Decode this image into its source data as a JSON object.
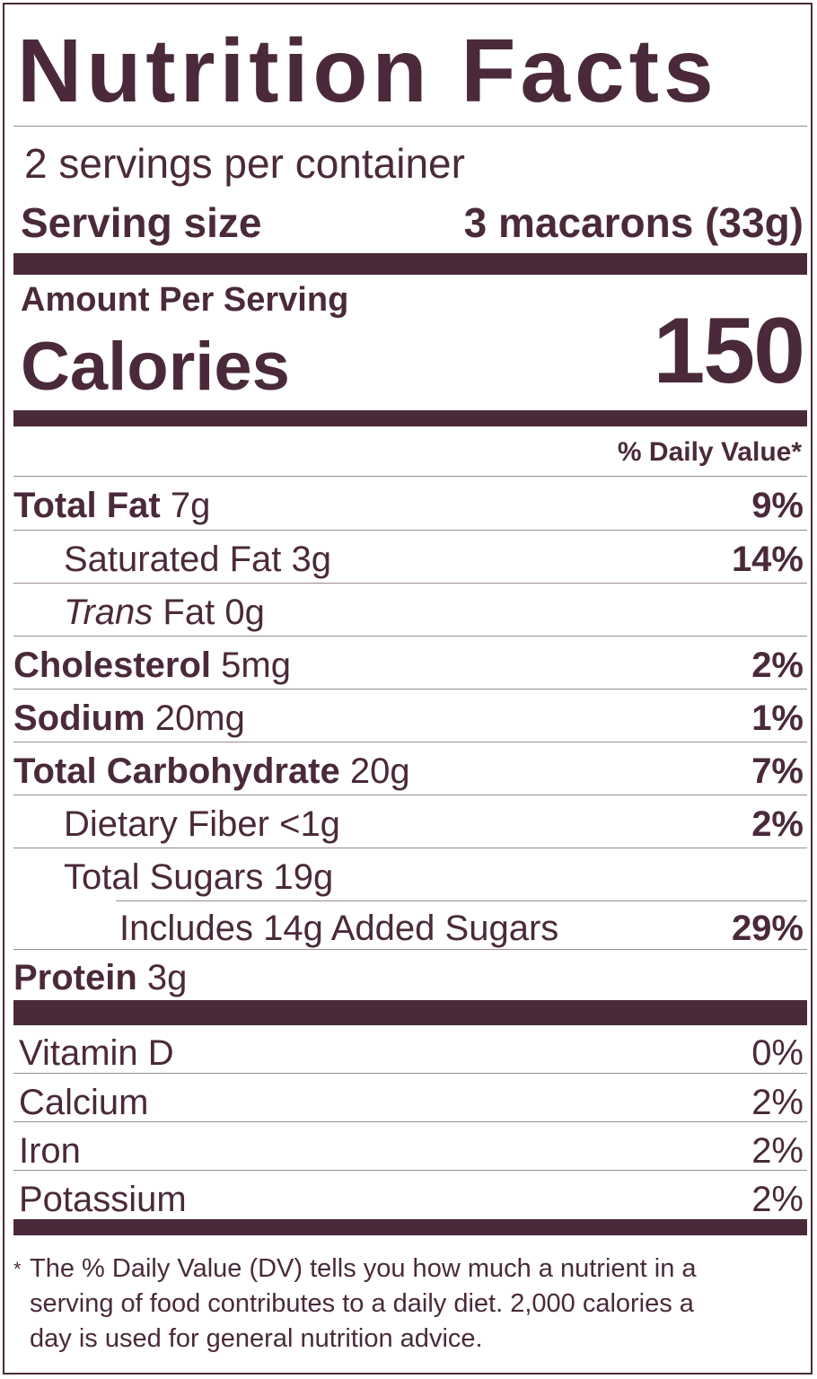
{
  "header": {
    "title": "Nutrition Facts"
  },
  "servings": {
    "per_container": "2 servings per container",
    "size_label": "Serving size",
    "size_value": "3 macarons (33g)"
  },
  "calories": {
    "amount_per_serving": "Amount Per Serving",
    "label": "Calories",
    "value": "150"
  },
  "daily_value_header": "% Daily Value*",
  "nutrients": [
    {
      "name": "Total Fat",
      "amount": "7g",
      "dv": "9%"
    },
    {
      "name": "Saturated Fat",
      "amount": "3g",
      "dv": "14%"
    },
    {
      "name_italic": "Trans",
      "name": "Fat",
      "amount": "0g",
      "dv": ""
    },
    {
      "name": "Cholesterol",
      "amount": "5mg",
      "dv": "2%"
    },
    {
      "name": "Sodium",
      "amount": "20mg",
      "dv": "1%"
    },
    {
      "name": "Total Carbohydrate",
      "amount": "20g",
      "dv": "7%"
    },
    {
      "name": "Dietary Fiber",
      "amount": "<1g",
      "dv": "2%"
    },
    {
      "name": "Total Sugars",
      "amount": "19g",
      "dv": ""
    },
    {
      "name": "Includes 14g Added Sugars",
      "amount": "",
      "dv": "29%"
    },
    {
      "name": "Protein",
      "amount": "3g",
      "dv": ""
    }
  ],
  "vitamins": [
    {
      "name": "Vitamin D",
      "dv": "0%"
    },
    {
      "name": "Calcium",
      "dv": "2%"
    },
    {
      "name": "Iron",
      "dv": "2%"
    },
    {
      "name": "Potassium",
      "dv": "2%"
    }
  ],
  "footnote": {
    "asterisk": "*",
    "line1": "The % Daily Value (DV) tells you how much a nutrient in a",
    "line2": "serving of food contributes to a daily diet. 2,000 calories a",
    "line3": "day is used for general nutrition advice."
  },
  "colors": {
    "ink": "#4a2a3a",
    "divider": "#9a8a94"
  }
}
